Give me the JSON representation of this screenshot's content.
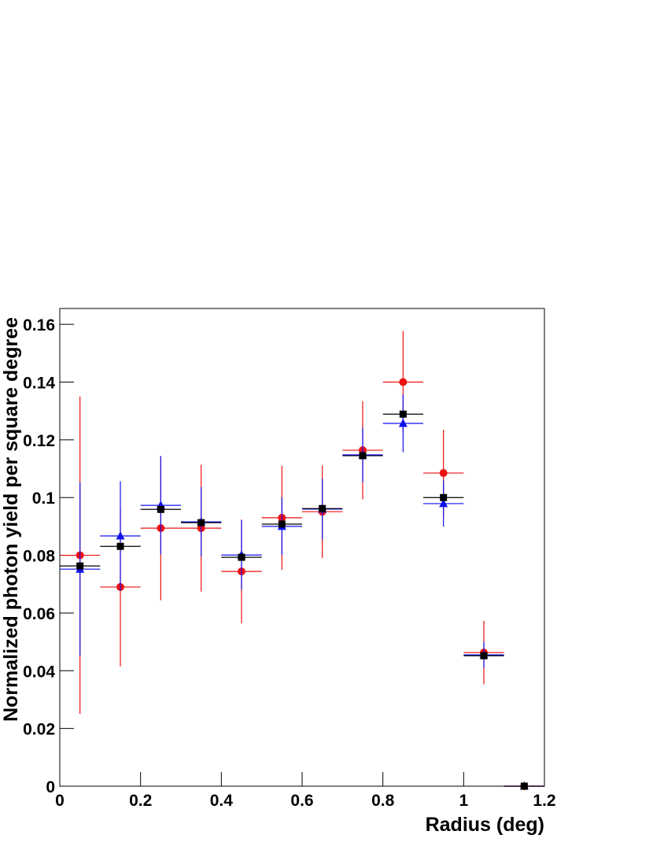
{
  "chart_data": {
    "type": "errorbar",
    "x_label": "Radius  (deg)",
    "y_label": "Normalized photon yield per square degree",
    "x": [
      0.05,
      0.15,
      0.25,
      0.35,
      0.45,
      0.55,
      0.65,
      0.75,
      0.85,
      0.95,
      1.05,
      1.15
    ],
    "xerr": 0.05,
    "series": [
      {
        "color": "#ee1111",
        "marker": "circle",
        "values": [
          0.08,
          0.069,
          0.0894,
          0.0894,
          0.0744,
          0.093,
          0.0951,
          0.1164,
          0.14,
          0.1085,
          0.0463,
          0
        ],
        "errors": [
          0.055,
          0.0275,
          0.025,
          0.022,
          0.018,
          0.018,
          0.016,
          0.017,
          0.0177,
          0.015,
          0.011,
          0
        ]
      },
      {
        "color": "#1111ee",
        "marker": "triangle",
        "values": [
          0.0752,
          0.0867,
          0.0973,
          0.0916,
          0.0801,
          0.09,
          0.096,
          0.1148,
          0.1257,
          0.0979,
          0.0455,
          0
        ],
        "errors": [
          0.03,
          0.019,
          0.017,
          0.012,
          0.012,
          0.01,
          0.0105,
          0.0094,
          0.01,
          0.008,
          0.0045,
          0
        ]
      },
      {
        "color": "#000000",
        "marker": "square",
        "values": [
          0.0763,
          0.0831,
          0.0959,
          0.0913,
          0.0793,
          0.0908,
          0.0962,
          0.1145,
          0.1289,
          0.1,
          0.0452,
          0
        ]
      }
    ],
    "xlim": [
      0,
      1.2
    ],
    "ylim": [
      0,
      0.1655
    ],
    "xticks": [
      0,
      0.2,
      0.4,
      0.6,
      0.8,
      1,
      1.2
    ],
    "yticks": [
      0,
      0.02,
      0.04,
      0.06,
      0.08,
      0.1,
      0.12,
      0.14,
      0.16
    ]
  }
}
